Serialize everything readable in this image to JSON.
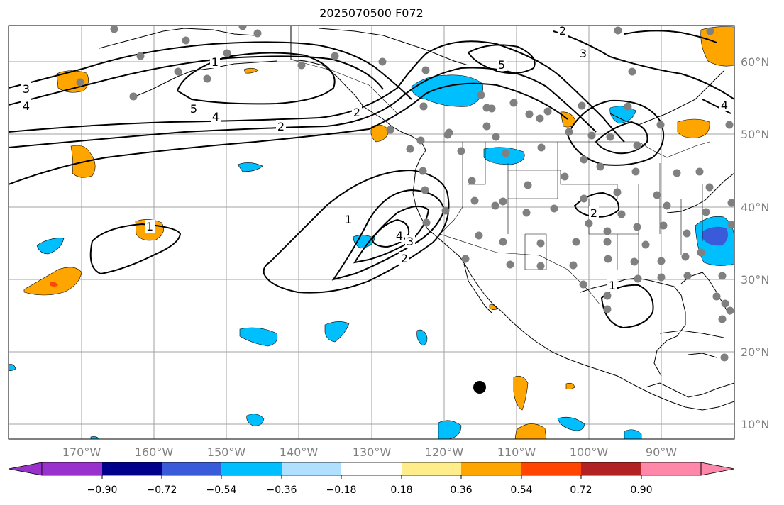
{
  "title": "2025070500 F072",
  "lon_ticks": [
    "170°W",
    "160°W",
    "150°W",
    "140°W",
    "130°W",
    "120°W",
    "110°W",
    "100°W",
    "90°W"
  ],
  "lat_ticks": [
    "60°N",
    "50°N",
    "40°N",
    "30°N",
    "20°N",
    "10°N"
  ],
  "colorbar": {
    "colors": [
      "#9932cc",
      "#00008b",
      "#3a5bd9",
      "#00bfff",
      "#b0e0ff",
      "#ffffff",
      "#ffec8b",
      "#ffa500",
      "#ff4500",
      "#b22222",
      "#ff88aa"
    ],
    "ticks": [
      "−0.90",
      "−0.72",
      "−0.54",
      "−0.36",
      "−0.18",
      "0.18",
      "0.36",
      "0.54",
      "0.72",
      "0.90"
    ]
  },
  "contour_labels": [
    "3",
    "4",
    "5",
    "4",
    "2",
    "1",
    "1",
    "4",
    "3",
    "2",
    "2",
    "1",
    "5",
    "3",
    "2",
    "2",
    "4",
    "1"
  ]
}
